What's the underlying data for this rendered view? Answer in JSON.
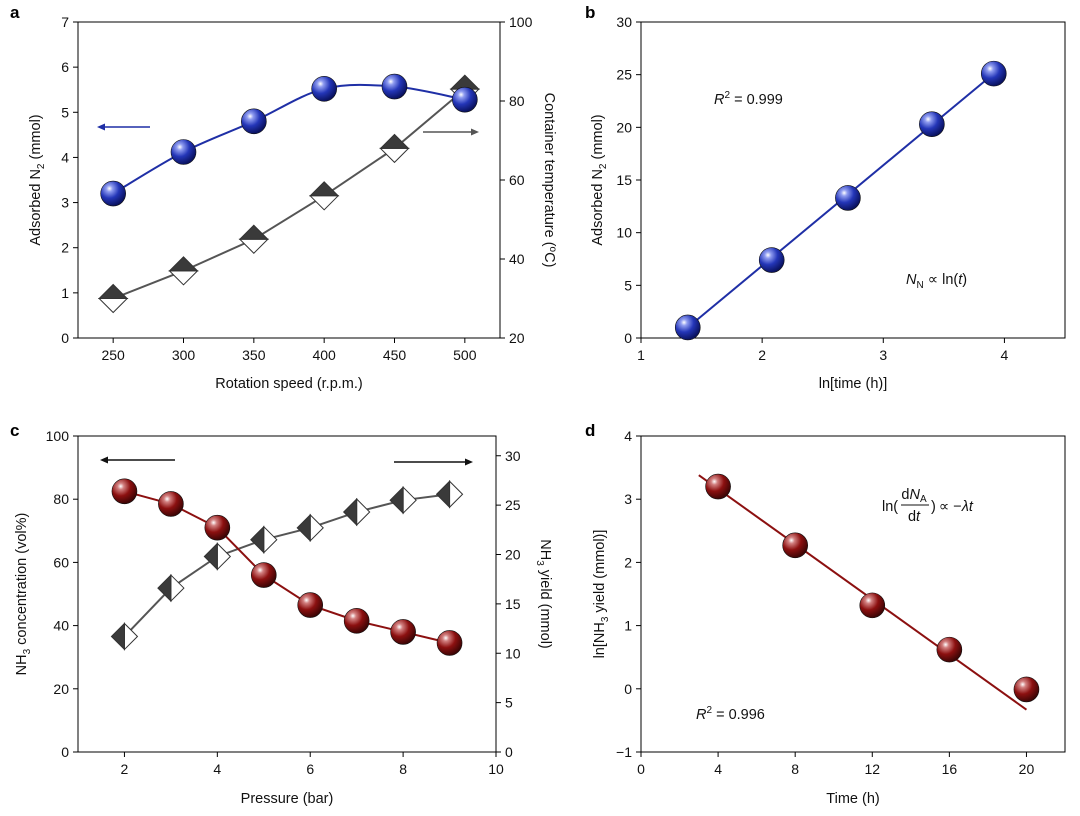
{
  "colors": {
    "blue": "#1f2fa6",
    "red": "#8c1010",
    "gray_line": "#555555",
    "diamond_dark": "#3a3a3a",
    "diamond_light": "#ffffff"
  },
  "panels": {
    "a": {
      "letter": "a"
    },
    "b": {
      "letter": "b"
    },
    "c": {
      "letter": "c"
    },
    "d": {
      "letter": "d"
    }
  },
  "chart_data": [
    {
      "id": "a",
      "type": "line",
      "xlabel": "Rotation speed (r.p.m.)",
      "ylabel_left_main": "Adsorbed N",
      "ylabel_left_sub": "2",
      "ylabel_left_tail": " (mmol)",
      "ylabel_right_main": "Container temperature (",
      "ylabel_right_sup": "o",
      "ylabel_right_tail": "C)",
      "xlim": [
        225,
        525
      ],
      "ylim_left": [
        0,
        7
      ],
      "ylim_right": [
        20,
        100
      ],
      "x_ticks": [
        250,
        300,
        350,
        400,
        450,
        500
      ],
      "y_ticks_left": [
        0,
        1,
        2,
        3,
        4,
        5,
        6,
        7
      ],
      "y_ticks_right": [
        20,
        40,
        60,
        80,
        100
      ],
      "series": [
        {
          "name": "Adsorbed N2",
          "axis": "left",
          "marker": "sphere",
          "color": "blue",
          "x": [
            250,
            300,
            350,
            400,
            450,
            500
          ],
          "y": [
            3.2,
            4.12,
            4.8,
            5.52,
            5.57,
            5.28
          ]
        },
        {
          "name": "Container temperature",
          "axis": "right",
          "marker": "diamond-top",
          "color": "gray",
          "x": [
            250,
            300,
            350,
            400,
            450,
            500
          ],
          "y": [
            30,
            37,
            45,
            56,
            68,
            83
          ]
        }
      ],
      "arrows": [
        {
          "direction": "left",
          "series": "Adsorbed N2"
        },
        {
          "direction": "right",
          "series": "Container temperature"
        }
      ]
    },
    {
      "id": "b",
      "type": "scatter",
      "xlabel": "ln[time (h)]",
      "ylabel_main": "Adsorbed N",
      "ylabel_sub": "2",
      "ylabel_tail": " (mmol)",
      "xlim": [
        1,
        4.5
      ],
      "ylim": [
        0,
        30
      ],
      "x_ticks": [
        1,
        2,
        3,
        4
      ],
      "y_ticks": [
        0,
        5,
        10,
        15,
        20,
        25,
        30
      ],
      "series": [
        {
          "name": "Adsorbed N2",
          "marker": "sphere",
          "color": "blue",
          "x": [
            1.386,
            2.079,
            2.708,
            3.401,
            3.912
          ],
          "y": [
            1.0,
            7.4,
            13.3,
            20.3,
            25.1
          ]
        }
      ],
      "fit_line": {
        "x": [
          1.386,
          3.912
        ],
        "y": [
          1.0,
          25.1
        ]
      },
      "annotations": {
        "r2_label": "R",
        "r2_sup": "2",
        "r2_value": " = 0.999",
        "law_n": "N",
        "law_sub": "N",
        "law_mid": " ∝ ln(",
        "law_t": "t",
        "law_end": ")"
      }
    },
    {
      "id": "c",
      "type": "line",
      "xlabel": "Pressure (bar)",
      "ylabel_left_pre": "NH",
      "ylabel_left_sub": "3",
      "ylabel_left_tail": " concentration (vol%)",
      "ylabel_right_pre": "NH",
      "ylabel_right_sub": "3",
      "ylabel_right_tail": " yield (mmol)",
      "xlim": [
        1,
        10
      ],
      "ylim_left": [
        0,
        100
      ],
      "ylim_right": [
        0,
        32
      ],
      "x_ticks": [
        2,
        4,
        6,
        8,
        10
      ],
      "y_ticks_left": [
        0,
        20,
        40,
        60,
        80,
        100
      ],
      "y_ticks_right": [
        0,
        5,
        10,
        15,
        20,
        25,
        30
      ],
      "series": [
        {
          "name": "NH3 concentration",
          "axis": "left",
          "marker": "sphere",
          "color": "red",
          "x": [
            2,
            3,
            4,
            5,
            6,
            7,
            8,
            9
          ],
          "y": [
            82.5,
            78.5,
            71,
            56,
            46.5,
            41.5,
            38,
            34.5
          ]
        },
        {
          "name": "NH3 yield",
          "axis": "right",
          "marker": "diamond-left",
          "color": "gray",
          "x": [
            2,
            3,
            4,
            5,
            6,
            7,
            8,
            9
          ],
          "y": [
            11.7,
            16.6,
            19.8,
            21.5,
            22.7,
            24.3,
            25.5,
            26.1
          ]
        }
      ],
      "arrows": [
        {
          "direction": "left",
          "series": "NH3 concentration"
        },
        {
          "direction": "right",
          "series": "NH3 yield"
        }
      ]
    },
    {
      "id": "d",
      "type": "scatter",
      "xlabel": "Time (h)",
      "ylabel_pre": "ln[NH",
      "ylabel_sub": "3",
      "ylabel_tail": " yield (mmol)]",
      "xlim": [
        0,
        22
      ],
      "ylim": [
        -1,
        4
      ],
      "x_ticks": [
        0,
        4,
        8,
        12,
        16,
        20
      ],
      "y_ticks": [
        -1,
        0,
        1,
        2,
        3,
        4
      ],
      "series": [
        {
          "name": "ln NH3 yield",
          "marker": "sphere",
          "color": "red",
          "x": [
            4,
            8,
            12,
            16,
            20
          ],
          "y": [
            3.2,
            2.27,
            1.32,
            0.62,
            -0.01
          ]
        }
      ],
      "fit_line": {
        "x": [
          3,
          20
        ],
        "y": [
          3.38,
          -0.33
        ]
      },
      "annotations": {
        "r2_label": "R",
        "r2_sup": "2",
        "r2_value": " = 0.996",
        "rate_ln": "ln(",
        "rate_num_d": "d",
        "rate_num_n": "N",
        "rate_num_sub": "A",
        "rate_den_d": "d",
        "rate_den_t": "t",
        "rate_close": ")",
        "rate_prop": "∝ −",
        "rate_lambda": "λ",
        "rate_t": "t"
      }
    }
  ]
}
